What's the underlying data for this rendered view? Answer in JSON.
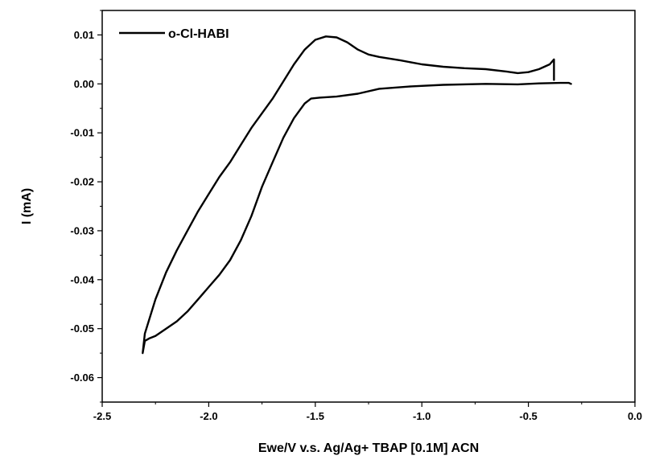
{
  "chart_data": {
    "type": "line",
    "title": "",
    "xlabel": "Ewe/V v.s. Ag/Ag+ TBAP [0.1M] ACN",
    "ylabel": "I (mA)",
    "xlim": [
      -2.5,
      0.0
    ],
    "ylim": [
      -0.065,
      0.015
    ],
    "x_ticks": [
      -2.5,
      -2.0,
      -1.5,
      -1.0,
      -0.5,
      0.0
    ],
    "x_tick_labels": [
      "-2.5",
      "-2.0",
      "-1.5",
      "-1.0",
      "-0.5",
      "0.0"
    ],
    "y_ticks": [
      0.01,
      0.0,
      -0.01,
      -0.02,
      -0.03,
      -0.04,
      -0.05,
      -0.06
    ],
    "y_tick_labels": [
      "0.01",
      "0.00",
      "-0.01",
      "-0.02",
      "-0.03",
      "-0.04",
      "-0.05",
      "-0.06"
    ],
    "grid": false,
    "legend_position": "top-left",
    "series": [
      {
        "name": "o-Cl-HABI",
        "color": "#000000",
        "x": [
          -0.3,
          -0.31,
          -0.35,
          -0.45,
          -0.55,
          -0.7,
          -0.9,
          -1.05,
          -1.2,
          -1.3,
          -1.4,
          -1.48,
          -1.52,
          -1.55,
          -1.6,
          -1.65,
          -1.7,
          -1.75,
          -1.8,
          -1.85,
          -1.9,
          -1.95,
          -2.0,
          -2.05,
          -2.1,
          -2.15,
          -2.2,
          -2.25,
          -2.28,
          -2.3,
          -2.31,
          -2.3,
          -2.25,
          -2.2,
          -2.15,
          -2.1,
          -2.05,
          -2.0,
          -1.95,
          -1.9,
          -1.85,
          -1.8,
          -1.75,
          -1.7,
          -1.65,
          -1.6,
          -1.55,
          -1.5,
          -1.45,
          -1.4,
          -1.35,
          -1.3,
          -1.25,
          -1.2,
          -1.1,
          -1.0,
          -0.9,
          -0.8,
          -0.7,
          -0.6,
          -0.55,
          -0.5,
          -0.45,
          -0.4,
          -0.38,
          -0.38
        ],
        "y": [
          0.0,
          0.0002,
          0.0002,
          0.0001,
          -0.0001,
          0.0,
          -0.0002,
          -0.0005,
          -0.001,
          -0.002,
          -0.0026,
          -0.0028,
          -0.003,
          -0.004,
          -0.007,
          -0.011,
          -0.016,
          -0.021,
          -0.027,
          -0.032,
          -0.036,
          -0.039,
          -0.0415,
          -0.044,
          -0.0465,
          -0.0485,
          -0.05,
          -0.0515,
          -0.052,
          -0.0525,
          -0.055,
          -0.051,
          -0.044,
          -0.0385,
          -0.034,
          -0.03,
          -0.026,
          -0.0225,
          -0.019,
          -0.016,
          -0.0125,
          -0.009,
          -0.006,
          -0.003,
          0.0005,
          0.004,
          0.007,
          0.009,
          0.0097,
          0.0095,
          0.0085,
          0.007,
          0.006,
          0.0055,
          0.0048,
          0.004,
          0.0035,
          0.0032,
          0.003,
          0.0025,
          0.0022,
          0.0024,
          0.003,
          0.004,
          0.005,
          0.0008
        ]
      }
    ]
  }
}
